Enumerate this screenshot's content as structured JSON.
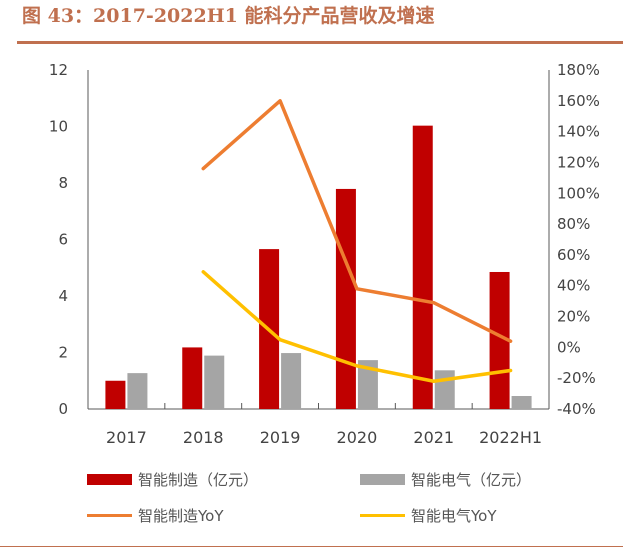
{
  "title": "图 43：2017-2022H1 能科分产品营收及增速",
  "chart_data": {
    "type": "bar+line",
    "title": "",
    "categories": [
      "2017",
      "2018",
      "2019",
      "2020",
      "2021",
      "2022H1"
    ],
    "y_left": {
      "range": [
        0,
        12
      ],
      "ticks": [
        "0",
        "2",
        "4",
        "6",
        "8",
        "10",
        "12"
      ]
    },
    "y_right": {
      "range": [
        -40,
        180
      ],
      "ticks": [
        "-40%",
        "-20%",
        "0%",
        "20%",
        "40%",
        "60%",
        "80%",
        "100%",
        "120%",
        "140%",
        "160%",
        "180%"
      ]
    },
    "grid": false,
    "legend_position": "bottom",
    "series": [
      {
        "name": "智能制造（亿元）",
        "type": "bar",
        "axis": "left",
        "color": "#c00000",
        "values": [
          1.0,
          2.18,
          5.66,
          7.79,
          10.03,
          4.85
        ]
      },
      {
        "name": "智能电气（亿元）",
        "type": "bar",
        "axis": "left",
        "color": "#a5a5a5",
        "values": [
          1.27,
          1.89,
          1.98,
          1.73,
          1.37,
          0.46
        ]
      },
      {
        "name": "智能制造YoY",
        "type": "line",
        "axis": "right",
        "color": "#ed7d31",
        "values": [
          null,
          116,
          160,
          38,
          29,
          4
        ]
      },
      {
        "name": "智能电气YoY",
        "type": "line",
        "axis": "right",
        "color": "#ffc000",
        "values": [
          null,
          49,
          5,
          -12,
          -22,
          -15
        ]
      }
    ]
  }
}
